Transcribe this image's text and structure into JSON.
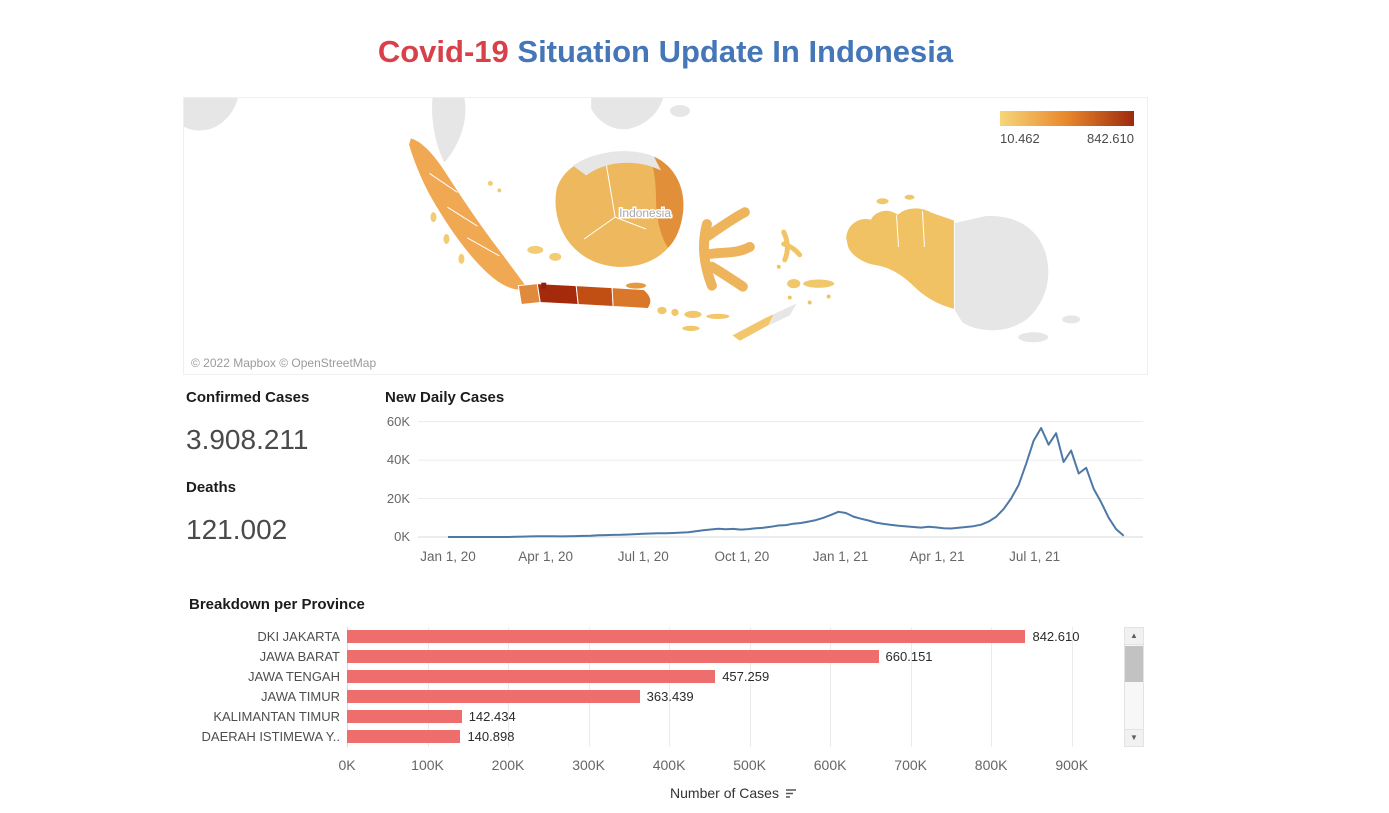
{
  "title": {
    "part1": "Covid-19",
    "part2": " Situation Update In Indonesia",
    "part1_color": "#d8404a",
    "part2_color": "#4577b8"
  },
  "map": {
    "country_label": "Indonesia",
    "attribution": "© 2022 Mapbox © OpenStreetMap",
    "legend": {
      "min_label": "10.462",
      "max_label": "842.610",
      "gradient": [
        "#f7d67a",
        "#e8872b",
        "#9c2a0e"
      ]
    }
  },
  "kpis": {
    "confirmed": {
      "label": "Confirmed Cases",
      "value": "3.908.211"
    },
    "deaths": {
      "label": "Deaths",
      "value": "121.002"
    }
  },
  "chart_data": [
    {
      "type": "line",
      "title": "New Daily Cases",
      "grid": "horizontal",
      "line_color": "#4e79a7",
      "x_step_days": 7,
      "x_domain": [
        -28,
        648
      ],
      "x_tick_days": [
        0,
        91,
        182,
        274,
        366,
        456,
        547
      ],
      "x_tick_labels": [
        "Jan 1, 20",
        "Apr 1, 20",
        "Jul 1, 20",
        "Oct 1, 20",
        "Jan 1, 21",
        "Apr 1, 21",
        "Jul 1, 21"
      ],
      "y_ticks": [
        0,
        20000,
        40000,
        60000
      ],
      "y_tick_labels": [
        "0K",
        "20K",
        "40K",
        "60K"
      ],
      "ylim": [
        0,
        65000
      ],
      "values": [
        0,
        0,
        0,
        0,
        0,
        0,
        0,
        0,
        0,
        100,
        200,
        300,
        400,
        340,
        360,
        320,
        370,
        480,
        560,
        680,
        900,
        1000,
        1080,
        1160,
        1300,
        1520,
        1700,
        1820,
        2000,
        1900,
        2100,
        2300,
        2500,
        3000,
        3500,
        3900,
        4300,
        4050,
        4200,
        3850,
        4100,
        4500,
        4800,
        5300,
        6000,
        6200,
        6900,
        7300,
        8000,
        8800,
        10000,
        11500,
        13100,
        12500,
        10600,
        9500,
        8600,
        7500,
        6800,
        6300,
        5800,
        5500,
        5200,
        4900,
        5300,
        5000,
        4600,
        4400,
        4800,
        5200,
        5600,
        6400,
        8000,
        10500,
        14500,
        20000,
        27000,
        38000,
        50000,
        56700,
        48000,
        54000,
        39000,
        45000,
        33000,
        36000,
        25000,
        18000,
        10000,
        4000,
        600
      ]
    },
    {
      "type": "bar",
      "title": "Breakdown per Province",
      "orientation": "horizontal",
      "grid": "vertical",
      "bar_color": "#ee6e6e",
      "categories": [
        "DKI JAKARTA",
        "JAWA BARAT",
        "JAWA TENGAH",
        "JAWA TIMUR",
        "KALIMANTAN TIMUR",
        "DAERAH ISTIMEWA Y.."
      ],
      "values": [
        842610,
        660151,
        457259,
        363439,
        142434,
        140898
      ],
      "value_labels": [
        "842.610",
        "660.151",
        "457.259",
        "363.439",
        "142.434",
        "140.898"
      ],
      "x_tick_values": [
        0,
        100000,
        200000,
        300000,
        400000,
        500000,
        600000,
        700000,
        800000,
        900000
      ],
      "x_tick_labels": [
        "0K",
        "100K",
        "200K",
        "300K",
        "400K",
        "500K",
        "600K",
        "700K",
        "800K",
        "900K"
      ],
      "xlim": [
        0,
        960000
      ],
      "xlabel": "Number of Cases"
    }
  ],
  "scrollbar": {
    "up_glyph": "▲",
    "down_glyph": "▼"
  }
}
